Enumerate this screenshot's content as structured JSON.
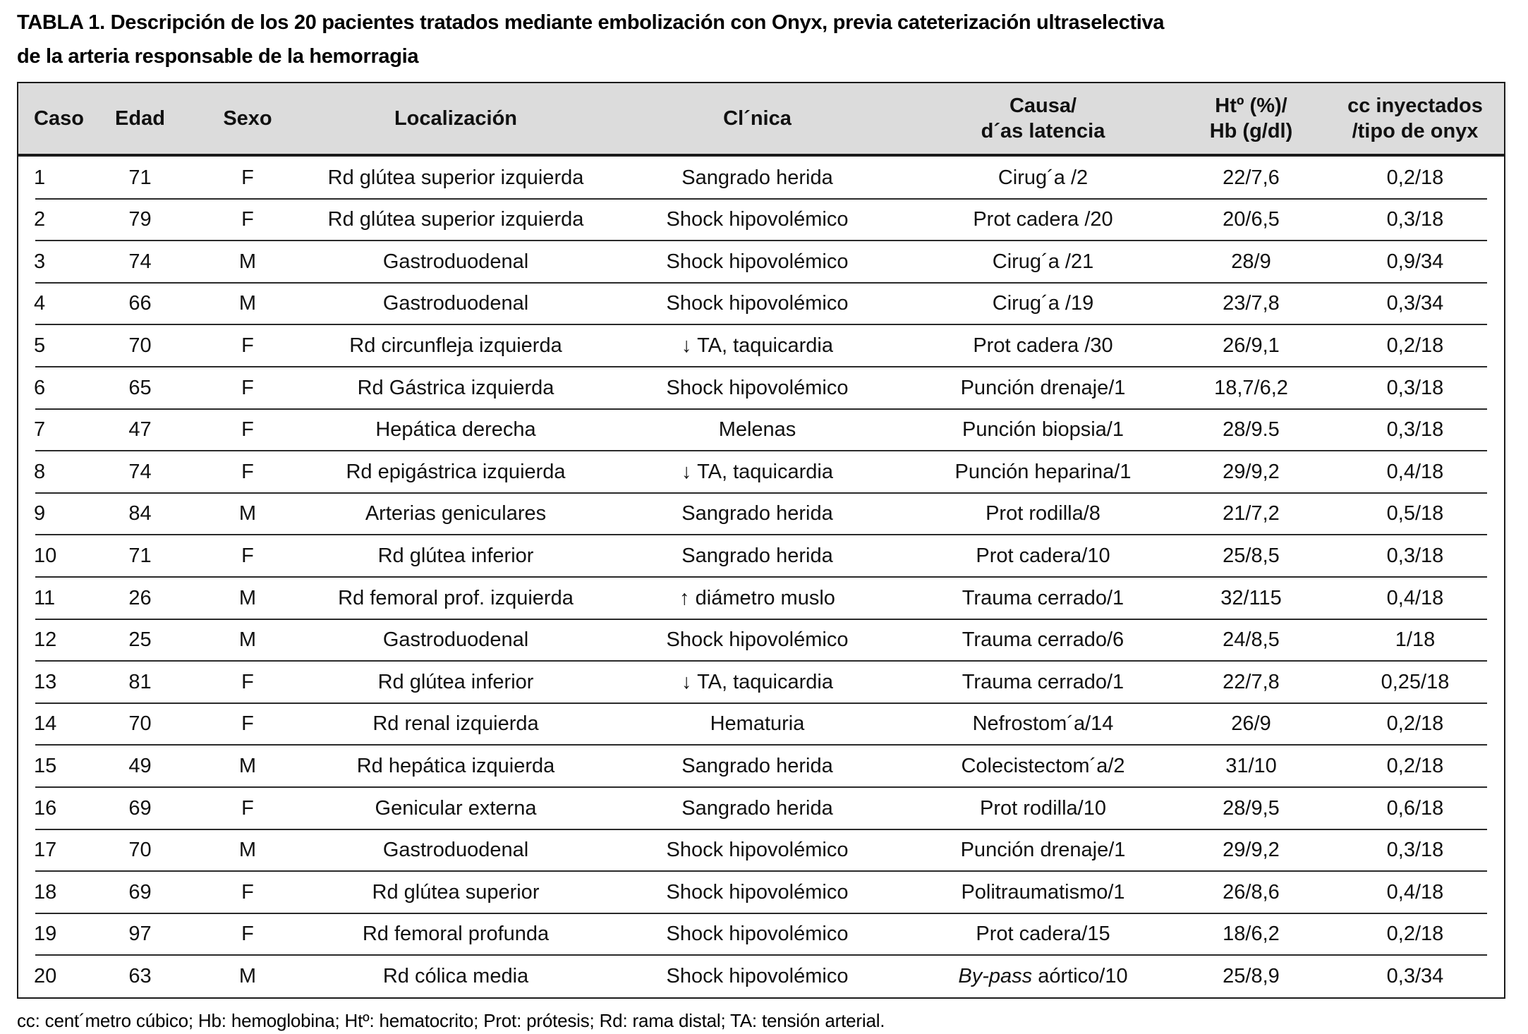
{
  "title": "TABLA 1. Descripción de los 20 pacientes tratados mediante embolización con Onyx, previa cateterización ultraselectiva\nde la arteria responsable de la hemorragia",
  "footnote": "cc: cent´metro cúbico; Hb: hemoglobina; Htº: hematocrito; Prot: prótesis; Rd: rama distal; TA: tensión arterial.",
  "colors": {
    "header_background": "#dcdcdc",
    "border": "#1b1b1b",
    "text": "#111111"
  },
  "table": {
    "columns": [
      {
        "key": "caso",
        "label": "Caso"
      },
      {
        "key": "edad",
        "label": "Edad"
      },
      {
        "key": "sexo",
        "label": "Sexo"
      },
      {
        "key": "localizacion",
        "label": "Localización"
      },
      {
        "key": "clinica",
        "label": "Cl´nica"
      },
      {
        "key": "causa",
        "label": "Causa/\nd´as latencia"
      },
      {
        "key": "ht_hb",
        "label": "Htº (%)/\nHb (g/dl)"
      },
      {
        "key": "cc_onyx",
        "label": "cc inyectados\n/tipo de onyx"
      }
    ],
    "rows": [
      {
        "caso": "1",
        "edad": "71",
        "sexo": "F",
        "localizacion": "Rd glútea superior izquierda",
        "clinica": "Sangrado herida",
        "causa": "Cirug´a /2",
        "ht_hb": "22/7,6",
        "cc_onyx": "0,2/18"
      },
      {
        "caso": "2",
        "edad": "79",
        "sexo": "F",
        "localizacion": "Rd glútea superior izquierda",
        "clinica": "Shock hipovolémico",
        "causa": "Prot cadera /20",
        "ht_hb": "20/6,5",
        "cc_onyx": "0,3/18"
      },
      {
        "caso": "3",
        "edad": "74",
        "sexo": "M",
        "localizacion": "Gastroduodenal",
        "clinica": "Shock hipovolémico",
        "causa": "Cirug´a /21",
        "ht_hb": "28/9",
        "cc_onyx": "0,9/34"
      },
      {
        "caso": "4",
        "edad": "66",
        "sexo": "M",
        "localizacion": "Gastroduodenal",
        "clinica": "Shock hipovolémico",
        "causa": "Cirug´a /19",
        "ht_hb": "23/7,8",
        "cc_onyx": "0,3/34"
      },
      {
        "caso": "5",
        "edad": "70",
        "sexo": "F",
        "localizacion": "Rd circunfleja izquierda",
        "clinica": "↓ TA, taquicardia",
        "causa": "Prot cadera /30",
        "ht_hb": "26/9,1",
        "cc_onyx": "0,2/18"
      },
      {
        "caso": "6",
        "edad": "65",
        "sexo": "F",
        "localizacion": "Rd Gástrica izquierda",
        "clinica": "Shock hipovolémico",
        "causa": "Punción drenaje/1",
        "ht_hb": "18,7/6,2",
        "cc_onyx": "0,3/18"
      },
      {
        "caso": "7",
        "edad": "47",
        "sexo": "F",
        "localizacion": "Hepática derecha",
        "clinica": "Melenas",
        "causa": "Punción biopsia/1",
        "ht_hb": "28/9.5",
        "cc_onyx": "0,3/18"
      },
      {
        "caso": "8",
        "edad": "74",
        "sexo": "F",
        "localizacion": "Rd epigástrica izquierda",
        "clinica": "↓ TA, taquicardia",
        "causa": "Punción heparina/1",
        "ht_hb": "29/9,2",
        "cc_onyx": "0,4/18"
      },
      {
        "caso": "9",
        "edad": "84",
        "sexo": "M",
        "localizacion": "Arterias geniculares",
        "clinica": "Sangrado herida",
        "causa": "Prot rodilla/8",
        "ht_hb": "21/7,2",
        "cc_onyx": "0,5/18"
      },
      {
        "caso": "10",
        "edad": "71",
        "sexo": "F",
        "localizacion": "Rd glútea inferior",
        "clinica": "Sangrado herida",
        "causa": "Prot cadera/10",
        "ht_hb": "25/8,5",
        "cc_onyx": "0,3/18"
      },
      {
        "caso": "11",
        "edad": "26",
        "sexo": "M",
        "localizacion": "Rd femoral prof. izquierda",
        "clinica": "↑ diámetro muslo",
        "causa": "Trauma cerrado/1",
        "ht_hb": "32/115",
        "cc_onyx": "0,4/18"
      },
      {
        "caso": "12",
        "edad": "25",
        "sexo": "M",
        "localizacion": "Gastroduodenal",
        "clinica": "Shock hipovolémico",
        "causa": "Trauma cerrado/6",
        "ht_hb": "24/8,5",
        "cc_onyx": "1/18"
      },
      {
        "caso": "13",
        "edad": "81",
        "sexo": "F",
        "localizacion": "Rd glútea inferior",
        "clinica": "↓ TA, taquicardia",
        "causa": "Trauma cerrado/1",
        "ht_hb": "22/7,8",
        "cc_onyx": "0,25/18"
      },
      {
        "caso": "14",
        "edad": "70",
        "sexo": "F",
        "localizacion": "Rd renal izquierda",
        "clinica": "Hematuria",
        "causa": "Nefrostom´a/14",
        "ht_hb": "26/9",
        "cc_onyx": "0,2/18"
      },
      {
        "caso": "15",
        "edad": "49",
        "sexo": "M",
        "localizacion": "Rd hepática izquierda",
        "clinica": "Sangrado herida",
        "causa": "Colecistectom´a/2",
        "ht_hb": "31/10",
        "cc_onyx": "0,2/18"
      },
      {
        "caso": "16",
        "edad": "69",
        "sexo": "F",
        "localizacion": "Genicular externa",
        "clinica": "Sangrado herida",
        "causa": "Prot rodilla/10",
        "ht_hb": "28/9,5",
        "cc_onyx": "0,6/18"
      },
      {
        "caso": "17",
        "edad": "70",
        "sexo": "M",
        "localizacion": "Gastroduodenal",
        "clinica": "Shock hipovolémico",
        "causa": "Punción drenaje/1",
        "ht_hb": "29/9,2",
        "cc_onyx": "0,3/18"
      },
      {
        "caso": "18",
        "edad": "69",
        "sexo": "F",
        "localizacion": "Rd glútea superior",
        "clinica": "Shock hipovolémico",
        "causa": "Politraumatismo/1",
        "ht_hb": "26/8,6",
        "cc_onyx": "0,4/18"
      },
      {
        "caso": "19",
        "edad": "97",
        "sexo": "F",
        "localizacion": "Rd femoral profunda",
        "clinica": "Shock hipovolémico",
        "causa": "Prot cadera/15",
        "ht_hb": "18/6,2",
        "cc_onyx": "0,2/18"
      },
      {
        "caso": "20",
        "edad": "63",
        "sexo": "M",
        "localizacion": "Rd cólica media",
        "clinica": "Shock hipovolémico",
        "causa": "By-pass aórtico/10",
        "causa_italic_prefix": "By-pass",
        "ht_hb": "25/8,9",
        "cc_onyx": "0,3/34"
      }
    ]
  }
}
